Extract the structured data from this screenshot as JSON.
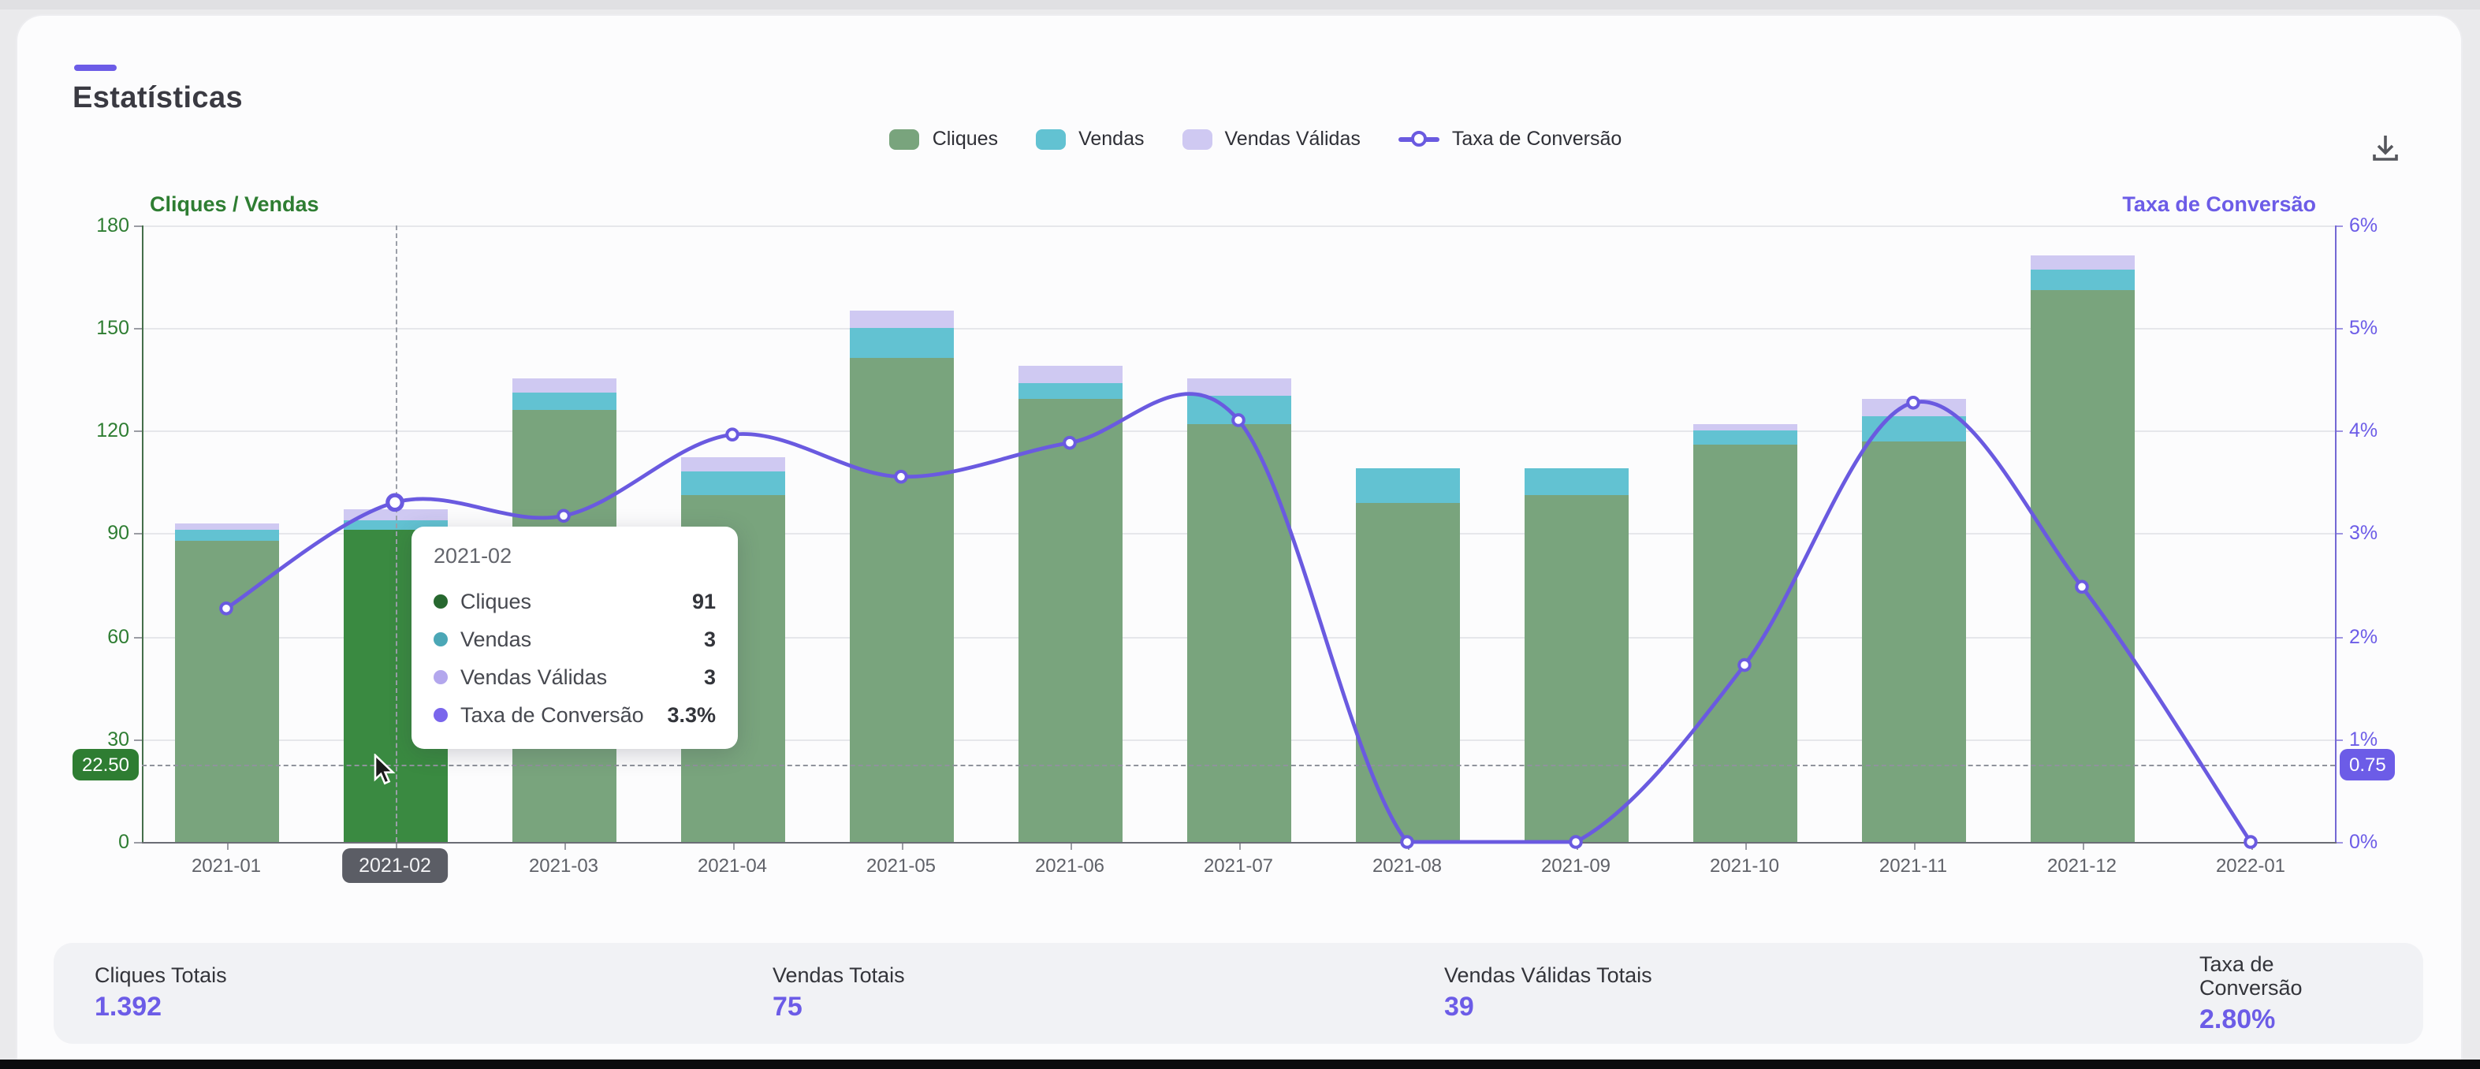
{
  "page": {
    "title": "Estatísticas",
    "accent_color": "#6c5ce7"
  },
  "toolbar": {
    "download_icon": "download",
    "icon_color": "#55565c"
  },
  "legend": {
    "items": [
      {
        "label": "Cliques",
        "color": "#79a47d",
        "marker": "swatch"
      },
      {
        "label": "Vendas",
        "color": "#62c2d2",
        "marker": "swatch"
      },
      {
        "label": "Vendas Válidas",
        "color": "#cfc9f2",
        "marker": "swatch"
      },
      {
        "label": "Taxa de Conversão",
        "color": "#6a5ae0",
        "marker": "line-circle"
      }
    ]
  },
  "axes": {
    "left_title": "Cliques / Vendas",
    "right_title": "Taxa de Conversão",
    "left_color": "#2e7d32",
    "right_color": "#6c5ce7",
    "left_ticks": [
      "0",
      "30",
      "60",
      "90",
      "120",
      "150",
      "180"
    ],
    "right_ticks": [
      "0%",
      "1%",
      "2%",
      "3%",
      "4%",
      "5%",
      "6%"
    ]
  },
  "chart_data": {
    "type": "bar",
    "subtype": "stacked-bars-with-line",
    "categories": [
      "2021-01",
      "2021-02",
      "2021-03",
      "2021-04",
      "2021-05",
      "2021-06",
      "2021-07",
      "2021-08",
      "2021-09",
      "2021-10",
      "2021-11",
      "2021-12",
      "2022-01"
    ],
    "series": [
      {
        "name": "Cliques",
        "type": "bar",
        "color": "#79a47d",
        "highlight_color": "#3a8a41",
        "values": [
          88,
          91,
          126,
          101,
          141,
          129,
          122,
          99,
          101,
          116,
          117,
          161,
          0
        ]
      },
      {
        "name": "Vendas",
        "type": "bar",
        "color": "#62c2d2",
        "values": [
          3,
          3,
          5,
          7,
          9,
          5,
          8,
          10,
          8,
          4,
          7,
          6,
          0
        ]
      },
      {
        "name": "Vendas Válidas",
        "type": "bar",
        "color": "#cfc9f2",
        "values": [
          2,
          3,
          4,
          4,
          5,
          5,
          5,
          0,
          0,
          2,
          5,
          4,
          0
        ]
      },
      {
        "name": "Taxa de Conversão",
        "type": "line",
        "color": "#6a5ae0",
        "unit": "%",
        "values": [
          2.27,
          3.3,
          3.17,
          3.96,
          3.55,
          3.88,
          4.1,
          0,
          0,
          1.72,
          4.27,
          2.48,
          0
        ]
      }
    ],
    "ylim_left": [
      0,
      180
    ],
    "ylim_right": [
      0,
      6
    ],
    "grid": true,
    "legend_position": "top-center",
    "highlight_index": 1
  },
  "crosshair": {
    "left_label": "22.50",
    "right_label": "0.75",
    "left_value": 22.5,
    "right_value": 0.75,
    "column_label": "2021-02",
    "left_badge_color": "#2e7d32",
    "right_badge_color": "#6c5ce7"
  },
  "tooltip": {
    "title": "2021-02",
    "rows": [
      {
        "label": "Cliques",
        "value": "91",
        "color": "#27682f"
      },
      {
        "label": "Vendas",
        "value": "3",
        "color": "#4ba7b6"
      },
      {
        "label": "Vendas Válidas",
        "value": "3",
        "color": "#b3a7ed"
      },
      {
        "label": "Taxa de Conversão",
        "value": "3.3%",
        "color": "#7a66ec"
      }
    ]
  },
  "stats": {
    "value_color": "#6c5ce7",
    "items": [
      {
        "label": "Cliques Totais",
        "value": "1.392"
      },
      {
        "label": "Vendas Totais",
        "value": "75"
      },
      {
        "label": "Vendas Válidas Totais",
        "value": "39"
      },
      {
        "label": "Taxa de Conversão",
        "value": "2.80%"
      }
    ]
  }
}
